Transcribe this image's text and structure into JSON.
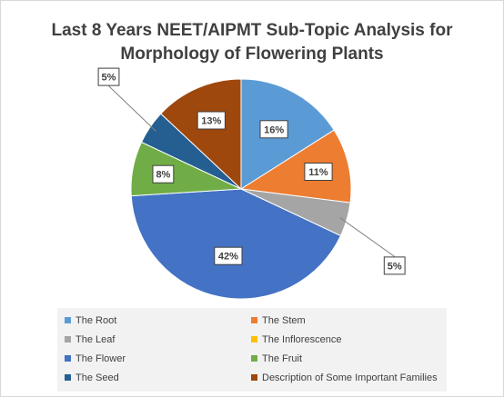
{
  "chart_data": {
    "type": "pie",
    "title_lines": [
      "Last 8 Years NEET/AIPMT Sub-Topic Analysis for",
      "Morphology of Flowering Plants"
    ],
    "categories": [
      "The Root",
      "The Stem",
      "The Leaf",
      "The Inflorescence",
      "The Flower",
      "The Fruit",
      "The Seed",
      "Description of Some Important Families"
    ],
    "values": [
      16,
      11,
      5,
      0,
      42,
      8,
      5,
      13
    ],
    "data_labels": [
      "16%",
      "11%",
      "5%",
      "",
      "42%",
      "8%",
      "5%",
      "13%"
    ],
    "colors": [
      "#5b9bd5",
      "#ed7d31",
      "#a5a5a5",
      "#ffc000",
      "#4472c4",
      "#70ad47",
      "#255e91",
      "#9e480e"
    ],
    "legend_position": "bottom",
    "start_angle": "12 o'clock, clockwise"
  }
}
